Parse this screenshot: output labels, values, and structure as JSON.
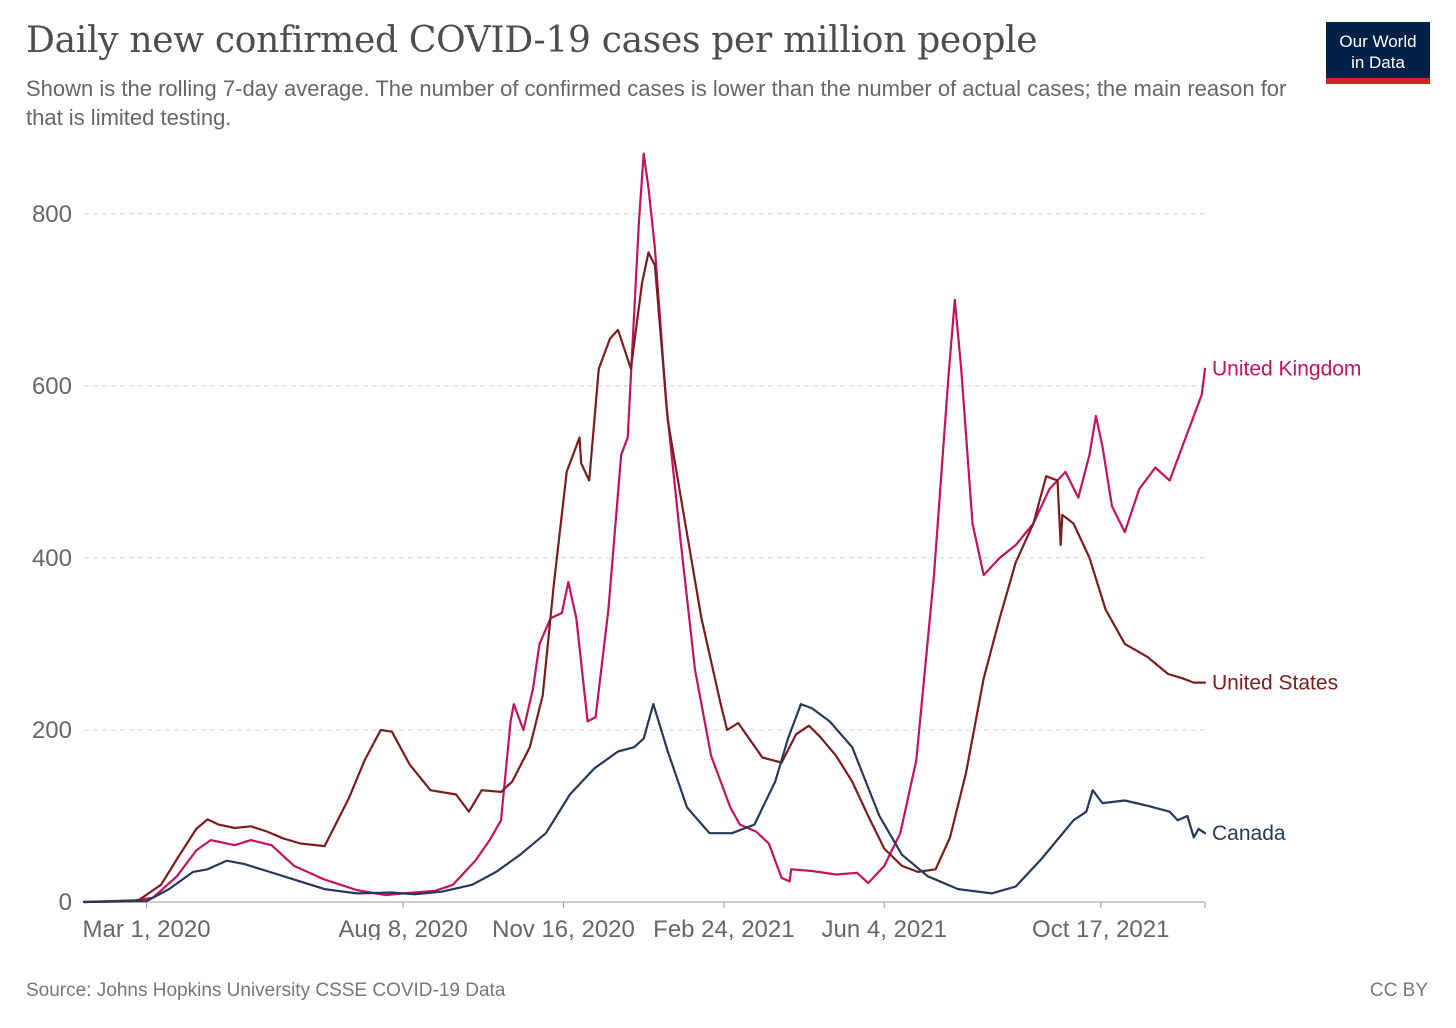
{
  "header": {
    "title": "Daily new confirmed COVID-19 cases per million people",
    "subtitle": "Shown is the rolling 7-day average. The number of confirmed cases is lower than the number of actual cases; the main reason for that is limited testing.",
    "logo_line1": "Our World",
    "logo_line2": "in Data"
  },
  "footer": {
    "source": "Source: Johns Hopkins University CSSE COVID-19 Data",
    "license": "CC BY"
  },
  "colors": {
    "United Kingdom": "#c4125e",
    "United States": "#7b1c1e",
    "Canada": "#25395a",
    "logo_bg": "#002147",
    "logo_bar": "#ce261e"
  },
  "chart_data": {
    "type": "line",
    "title": "Daily new confirmed COVID-19 cases per million people",
    "xlabel": "",
    "ylabel": "",
    "ylim": [
      0,
      880
    ],
    "yticks": [
      0,
      200,
      400,
      600,
      800
    ],
    "xlim": [
      "2020-01-22",
      "2021-12-21"
    ],
    "xticks": [
      {
        "date": "2020-03-01",
        "label": "Mar 1, 2020"
      },
      {
        "date": "2020-08-08",
        "label": "Aug 8, 2020"
      },
      {
        "date": "2020-11-16",
        "label": "Nov 16, 2020"
      },
      {
        "date": "2021-02-24",
        "label": "Feb 24, 2021"
      },
      {
        "date": "2021-06-04",
        "label": "Jun 4, 2021"
      },
      {
        "date": "2021-10-17",
        "label": "Oct 17, 2021"
      }
    ],
    "grid": true,
    "legend": "inline labels at line ends",
    "series": [
      {
        "name": "United Kingdom",
        "points": [
          [
            "2020-01-22",
            0
          ],
          [
            "2020-02-20",
            1
          ],
          [
            "2020-03-05",
            5
          ],
          [
            "2020-03-20",
            30
          ],
          [
            "2020-04-01",
            60
          ],
          [
            "2020-04-10",
            72
          ],
          [
            "2020-04-25",
            66
          ],
          [
            "2020-05-05",
            72
          ],
          [
            "2020-05-18",
            66
          ],
          [
            "2020-06-01",
            42
          ],
          [
            "2020-06-20",
            26
          ],
          [
            "2020-07-10",
            14
          ],
          [
            "2020-07-28",
            8
          ],
          [
            "2020-08-08",
            10
          ],
          [
            "2020-08-28",
            13
          ],
          [
            "2020-09-08",
            20
          ],
          [
            "2020-09-22",
            48
          ],
          [
            "2020-10-01",
            72
          ],
          [
            "2020-10-08",
            95
          ],
          [
            "2020-10-14",
            210
          ],
          [
            "2020-10-16",
            230
          ],
          [
            "2020-10-22",
            200
          ],
          [
            "2020-10-28",
            248
          ],
          [
            "2020-11-01",
            300
          ],
          [
            "2020-11-08",
            330
          ],
          [
            "2020-11-15",
            336
          ],
          [
            "2020-11-19",
            372
          ],
          [
            "2020-11-24",
            330
          ],
          [
            "2020-12-01",
            210
          ],
          [
            "2020-12-06",
            215
          ],
          [
            "2020-12-14",
            340
          ],
          [
            "2020-12-22",
            520
          ],
          [
            "2020-12-26",
            540
          ],
          [
            "2021-01-02",
            790
          ],
          [
            "2021-01-05",
            870
          ],
          [
            "2021-01-08",
            830
          ],
          [
            "2021-01-12",
            760
          ],
          [
            "2021-01-19",
            580
          ],
          [
            "2021-01-28",
            420
          ],
          [
            "2021-02-06",
            270
          ],
          [
            "2021-02-16",
            170
          ],
          [
            "2021-02-28",
            110
          ],
          [
            "2021-03-06",
            90
          ],
          [
            "2021-03-16",
            82
          ],
          [
            "2021-03-24",
            68
          ],
          [
            "2021-04-01",
            28
          ],
          [
            "2021-04-06",
            24
          ],
          [
            "2021-04-07",
            38
          ],
          [
            "2021-04-20",
            36
          ],
          [
            "2021-05-05",
            32
          ],
          [
            "2021-05-18",
            34
          ],
          [
            "2021-05-25",
            22
          ],
          [
            "2021-06-04",
            42
          ],
          [
            "2021-06-14",
            80
          ],
          [
            "2021-06-24",
            165
          ],
          [
            "2021-07-05",
            380
          ],
          [
            "2021-07-14",
            610
          ],
          [
            "2021-07-18",
            700
          ],
          [
            "2021-07-22",
            620
          ],
          [
            "2021-07-29",
            440
          ],
          [
            "2021-08-05",
            380
          ],
          [
            "2021-08-15",
            400
          ],
          [
            "2021-08-25",
            415
          ],
          [
            "2021-09-05",
            440
          ],
          [
            "2021-09-15",
            480
          ],
          [
            "2021-09-25",
            500
          ],
          [
            "2021-10-03",
            470
          ],
          [
            "2021-10-10",
            520
          ],
          [
            "2021-10-14",
            565
          ],
          [
            "2021-10-18",
            530
          ],
          [
            "2021-10-24",
            460
          ],
          [
            "2021-11-01",
            430
          ],
          [
            "2021-11-10",
            480
          ],
          [
            "2021-11-20",
            505
          ],
          [
            "2021-11-29",
            490
          ],
          [
            "2021-12-06",
            525
          ],
          [
            "2021-12-13",
            560
          ],
          [
            "2021-12-19",
            590
          ],
          [
            "2021-12-21",
            620
          ]
        ]
      },
      {
        "name": "United States",
        "points": [
          [
            "2020-01-22",
            0
          ],
          [
            "2020-02-25",
            2
          ],
          [
            "2020-03-10",
            20
          ],
          [
            "2020-03-20",
            50
          ],
          [
            "2020-04-01",
            85
          ],
          [
            "2020-04-08",
            96
          ],
          [
            "2020-04-15",
            90
          ],
          [
            "2020-04-25",
            86
          ],
          [
            "2020-05-05",
            88
          ],
          [
            "2020-05-15",
            82
          ],
          [
            "2020-05-25",
            74
          ],
          [
            "2020-06-05",
            68
          ],
          [
            "2020-06-20",
            65
          ],
          [
            "2020-07-05",
            120
          ],
          [
            "2020-07-15",
            165
          ],
          [
            "2020-07-25",
            200
          ],
          [
            "2020-08-01",
            198
          ],
          [
            "2020-08-12",
            160
          ],
          [
            "2020-08-25",
            130
          ],
          [
            "2020-09-10",
            125
          ],
          [
            "2020-09-18",
            105
          ],
          [
            "2020-09-26",
            130
          ],
          [
            "2020-10-08",
            128
          ],
          [
            "2020-10-15",
            140
          ],
          [
            "2020-10-26",
            180
          ],
          [
            "2020-11-03",
            240
          ],
          [
            "2020-11-10",
            370
          ],
          [
            "2020-11-18",
            500
          ],
          [
            "2020-11-26",
            540
          ],
          [
            "2020-11-27",
            510
          ],
          [
            "2020-12-02",
            490
          ],
          [
            "2020-12-08",
            620
          ],
          [
            "2020-12-15",
            655
          ],
          [
            "2020-12-20",
            665
          ],
          [
            "2020-12-28",
            620
          ],
          [
            "2021-01-04",
            720
          ],
          [
            "2021-01-08",
            755
          ],
          [
            "2021-01-12",
            740
          ],
          [
            "2021-01-20",
            560
          ],
          [
            "2021-01-30",
            450
          ],
          [
            "2021-02-10",
            330
          ],
          [
            "2021-02-22",
            230
          ],
          [
            "2021-02-26",
            200
          ],
          [
            "2021-03-05",
            208
          ],
          [
            "2021-03-20",
            168
          ],
          [
            "2021-04-01",
            162
          ],
          [
            "2021-04-10",
            195
          ],
          [
            "2021-04-18",
            205
          ],
          [
            "2021-04-25",
            192
          ],
          [
            "2021-05-05",
            170
          ],
          [
            "2021-05-15",
            140
          ],
          [
            "2021-05-25",
            100
          ],
          [
            "2021-06-04",
            62
          ],
          [
            "2021-06-15",
            42
          ],
          [
            "2021-06-25",
            35
          ],
          [
            "2021-07-06",
            38
          ],
          [
            "2021-07-15",
            75
          ],
          [
            "2021-07-25",
            150
          ],
          [
            "2021-08-05",
            260
          ],
          [
            "2021-08-15",
            330
          ],
          [
            "2021-08-25",
            395
          ],
          [
            "2021-09-05",
            440
          ],
          [
            "2021-09-13",
            495
          ],
          [
            "2021-09-20",
            490
          ],
          [
            "2021-09-22",
            415
          ],
          [
            "2021-09-23",
            450
          ],
          [
            "2021-09-30",
            440
          ],
          [
            "2021-10-10",
            400
          ],
          [
            "2021-10-20",
            340
          ],
          [
            "2021-11-01",
            300
          ],
          [
            "2021-11-15",
            285
          ],
          [
            "2021-11-28",
            265
          ],
          [
            "2021-12-07",
            260
          ],
          [
            "2021-12-14",
            255
          ],
          [
            "2021-12-21",
            255
          ]
        ]
      },
      {
        "name": "Canada",
        "points": [
          [
            "2020-01-22",
            0
          ],
          [
            "2020-03-01",
            1
          ],
          [
            "2020-03-15",
            15
          ],
          [
            "2020-03-30",
            35
          ],
          [
            "2020-04-08",
            38
          ],
          [
            "2020-04-20",
            48
          ],
          [
            "2020-05-01",
            44
          ],
          [
            "2020-05-15",
            36
          ],
          [
            "2020-06-01",
            26
          ],
          [
            "2020-06-20",
            15
          ],
          [
            "2020-07-10",
            10
          ],
          [
            "2020-08-01",
            11
          ],
          [
            "2020-08-15",
            9
          ],
          [
            "2020-09-01",
            12
          ],
          [
            "2020-09-20",
            20
          ],
          [
            "2020-10-05",
            35
          ],
          [
            "2020-10-20",
            55
          ],
          [
            "2020-11-05",
            80
          ],
          [
            "2020-11-20",
            125
          ],
          [
            "2020-12-05",
            155
          ],
          [
            "2020-12-20",
            175
          ],
          [
            "2020-12-30",
            180
          ],
          [
            "2021-01-05",
            190
          ],
          [
            "2021-01-11",
            230
          ],
          [
            "2021-01-20",
            175
          ],
          [
            "2021-02-01",
            110
          ],
          [
            "2021-02-15",
            80
          ],
          [
            "2021-03-01",
            80
          ],
          [
            "2021-03-15",
            90
          ],
          [
            "2021-03-28",
            140
          ],
          [
            "2021-04-05",
            190
          ],
          [
            "2021-04-13",
            230
          ],
          [
            "2021-04-20",
            225
          ],
          [
            "2021-05-01",
            210
          ],
          [
            "2021-05-15",
            180
          ],
          [
            "2021-06-01",
            100
          ],
          [
            "2021-06-15",
            55
          ],
          [
            "2021-07-01",
            30
          ],
          [
            "2021-07-20",
            15
          ],
          [
            "2021-08-10",
            10
          ],
          [
            "2021-08-25",
            18
          ],
          [
            "2021-09-10",
            50
          ],
          [
            "2021-09-30",
            95
          ],
          [
            "2021-10-08",
            105
          ],
          [
            "2021-10-12",
            130
          ],
          [
            "2021-10-18",
            115
          ],
          [
            "2021-11-01",
            118
          ],
          [
            "2021-11-15",
            112
          ],
          [
            "2021-11-29",
            105
          ],
          [
            "2021-12-04",
            95
          ],
          [
            "2021-12-10",
            100
          ],
          [
            "2021-12-14",
            75
          ],
          [
            "2021-12-17",
            85
          ],
          [
            "2021-12-21",
            80
          ]
        ]
      }
    ]
  }
}
